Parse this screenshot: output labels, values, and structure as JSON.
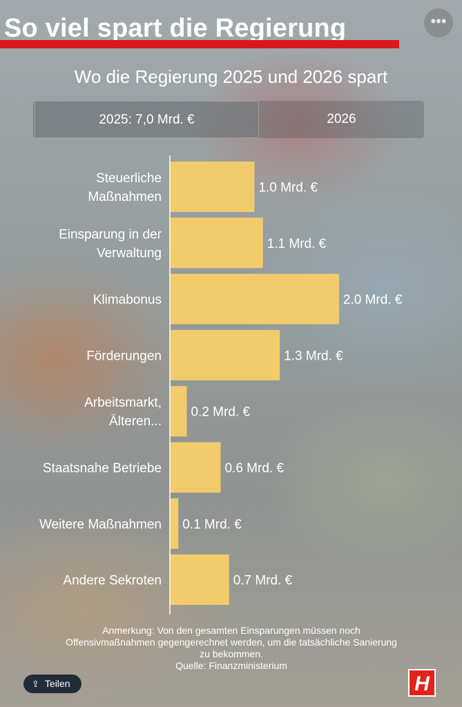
{
  "header": {
    "headline": "So viel spart die Regierung",
    "more_icon": "more-dots-icon",
    "more_glyph": "•••"
  },
  "chart_title": "Wo die Regierung 2025 und 2026 spart",
  "tabs": [
    {
      "label": "2025: 7,0 Mrd. €",
      "active": true
    },
    {
      "label": "2026",
      "active": false
    }
  ],
  "colors": {
    "bar": "#f2cc6b",
    "headline_bar": "#d7191c",
    "logo": "#e2231a"
  },
  "chart_data": {
    "type": "bar",
    "orientation": "horizontal",
    "categories": [
      [
        "Steuerliche",
        "Maßnahmen"
      ],
      [
        "Einsparung in der",
        "Verwaltung"
      ],
      [
        "Klimabonus"
      ],
      [
        "Förderungen"
      ],
      [
        "Arbeitsmarkt,",
        "Älteren..."
      ],
      [
        "Staatsnahe Betriebe"
      ],
      [
        "Weitere Maßnahmen"
      ],
      [
        "Andere Sekroten"
      ]
    ],
    "values": [
      1.0,
      1.1,
      2.0,
      1.3,
      0.2,
      0.6,
      0.1,
      0.7
    ],
    "value_labels": [
      "1.0 Mrd. €",
      "1.1 Mrd. €",
      "2.0 Mrd. €",
      "1.3 Mrd. €",
      "0.2 Mrd. €",
      "0.6 Mrd. €",
      "0.1 Mrd. €",
      "0.7 Mrd. €"
    ],
    "xlim": [
      0,
      2.45
    ],
    "grid": false
  },
  "footer": {
    "note_lines": [
      "Anmerkung: Von den gesamten Einsparungen müssen noch",
      "Offensivmaßnahmen gegengerechnet werden, um die tatsächliche Sanierung",
      "zu bekommen.",
      "Quelle: Finanzministerium"
    ],
    "share_label": "Teilen",
    "share_icon": "share-icon",
    "logo_text": "H"
  }
}
